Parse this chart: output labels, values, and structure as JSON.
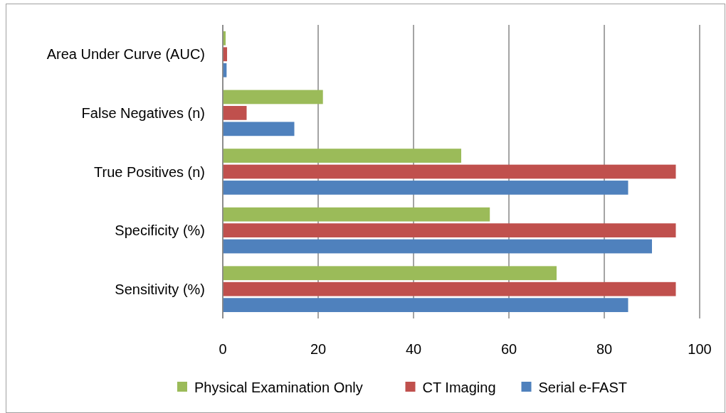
{
  "chart_data": {
    "type": "bar",
    "orientation": "horizontal",
    "categories": [
      "Area Under Curve (AUC)",
      "False Negatives (n)",
      "True Positives (n)",
      "Specificity (%)",
      "Sensitivity (%)"
    ],
    "series": [
      {
        "name": "Physical Examination Only",
        "color": "#9bbb59",
        "values": [
          0.6,
          21,
          50,
          56,
          70
        ]
      },
      {
        "name": "CT Imaging",
        "color": "#c0504d",
        "values": [
          0.9,
          5,
          95,
          95,
          95
        ]
      },
      {
        "name": "Serial e-FAST",
        "color": "#4f81bd",
        "values": [
          0.8,
          15,
          85,
          90,
          85
        ]
      }
    ],
    "xlim": [
      0,
      100
    ],
    "xticks": [
      0,
      20,
      40,
      60,
      80,
      100
    ],
    "grid": "x",
    "legend": "bottom"
  }
}
